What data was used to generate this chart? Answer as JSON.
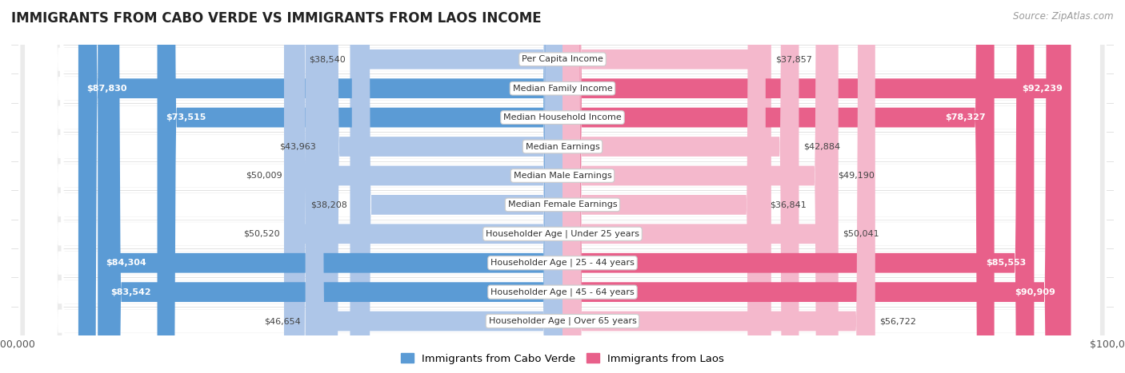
{
  "title": "IMMIGRANTS FROM CABO VERDE VS IMMIGRANTS FROM LAOS INCOME",
  "source": "Source: ZipAtlas.com",
  "categories": [
    "Per Capita Income",
    "Median Family Income",
    "Median Household Income",
    "Median Earnings",
    "Median Male Earnings",
    "Median Female Earnings",
    "Householder Age | Under 25 years",
    "Householder Age | 25 - 44 years",
    "Householder Age | 45 - 64 years",
    "Householder Age | Over 65 years"
  ],
  "cabo_verde": [
    38540,
    87830,
    73515,
    43963,
    50009,
    38208,
    50520,
    84304,
    83542,
    46654
  ],
  "laos": [
    37857,
    92239,
    78327,
    42884,
    49190,
    36841,
    50041,
    85553,
    90909,
    56722
  ],
  "max_value": 100000,
  "cabo_verde_color_light": "#aec6e8",
  "cabo_verde_color_dark": "#5b9bd5",
  "laos_color_light": "#f4b8cc",
  "laos_color_dark": "#e8608a",
  "row_bg_color": "#ebebeb",
  "white": "#ffffff",
  "legend_cabo_verde": "Immigrants from Cabo Verde",
  "legend_laos": "Immigrants from Laos",
  "label_fontsize": 8.5,
  "title_fontsize": 12,
  "dark_threshold": 0.7
}
